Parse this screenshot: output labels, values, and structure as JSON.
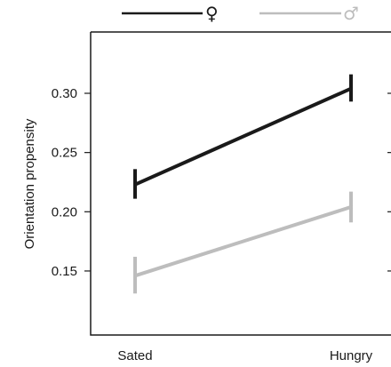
{
  "chart_data": {
    "type": "line",
    "categories": [
      "Sated",
      "Hungry"
    ],
    "ylabel": "Orientation propensity",
    "xlabel": "",
    "ylim": [
      0.1,
      0.36
    ],
    "yticks": [
      "0.15",
      "0.20",
      "0.25",
      "0.30"
    ],
    "grid": false,
    "legend_position": "top",
    "series": [
      {
        "name": "♀",
        "color": "#1a1a1a",
        "values": [
          0.223,
          0.304
        ],
        "error_low": [
          0.211,
          0.293
        ],
        "error_high": [
          0.236,
          0.316
        ]
      },
      {
        "name": "♂",
        "color": "#bdbdbd",
        "values": [
          0.146,
          0.204
        ],
        "error_low": [
          0.131,
          0.191
        ],
        "error_high": [
          0.162,
          0.217
        ]
      }
    ]
  }
}
